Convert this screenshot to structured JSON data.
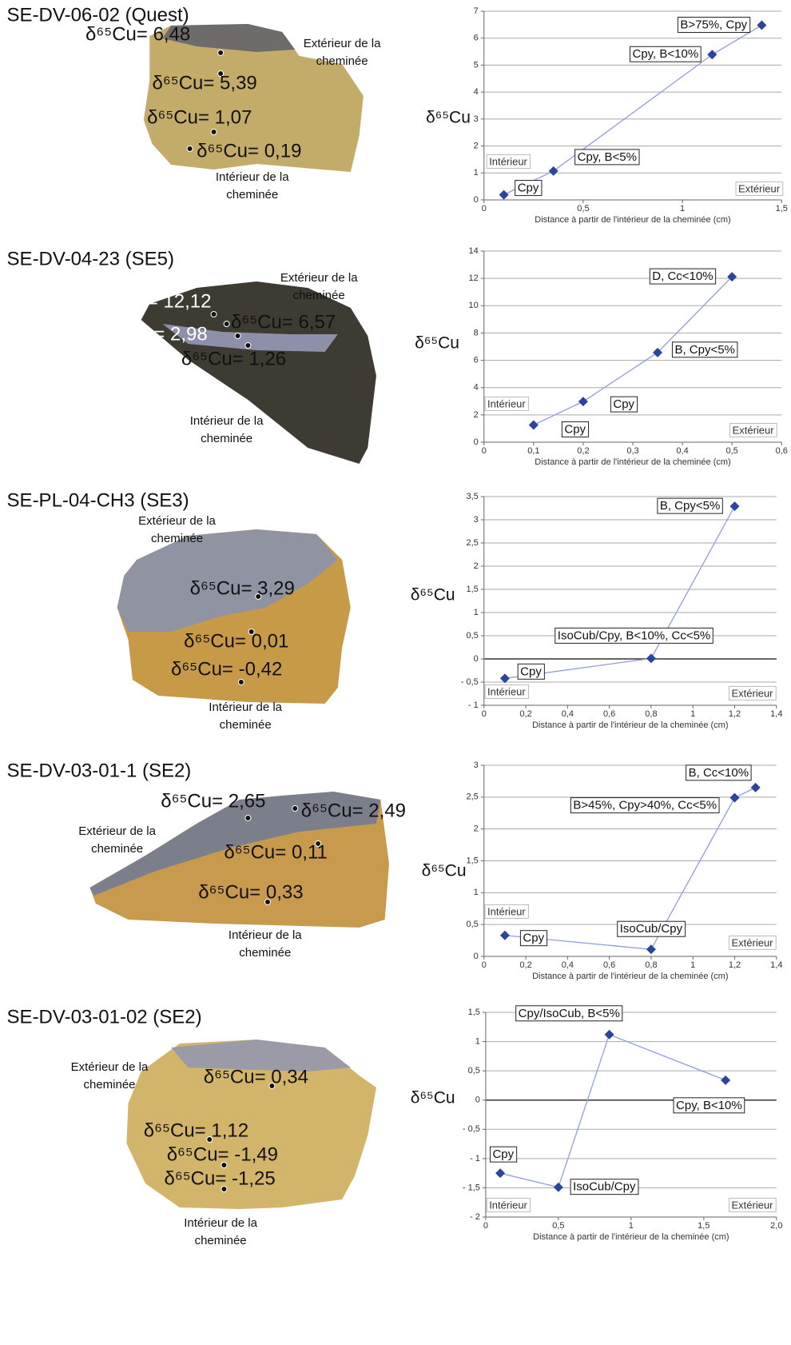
{
  "samples": [
    {
      "title": "SE-DV-06-02 (Quest)",
      "measurements": [
        "δ⁶⁵Cu= 6,48",
        "δ⁶⁵Cu= 5,39",
        "δ⁶⁵Cu= 1,07",
        "δ⁶⁵Cu= 0,19"
      ],
      "outer": [
        "Extérieur de la",
        "cheminée"
      ],
      "inner": [
        "Intérieur de la",
        "cheminée"
      ]
    },
    {
      "title": "SE-DV-04-23 (SE5)",
      "measurements": [
        "δ⁶⁵Cu= 12,12",
        "δ⁶⁵Cu= 6,57",
        "δ⁶⁵Cu= 2,98",
        "δ⁶⁵Cu= 1,26"
      ],
      "outer": [
        "Extérieur de la",
        "cheminée"
      ],
      "inner": [
        "Intérieur de la",
        "cheminée"
      ]
    },
    {
      "title": "SE-PL-04-CH3 (SE3)",
      "measurements": [
        "δ⁶⁵Cu= 3,29",
        "δ⁶⁵Cu= 0,01",
        "δ⁶⁵Cu= -0,42"
      ],
      "outer": [
        "Extérieur de la",
        "cheminée"
      ],
      "inner": [
        "Intérieur de la",
        "cheminée"
      ]
    },
    {
      "title": "SE-DV-03-01-1 (SE2)",
      "measurements": [
        "δ⁶⁵Cu= 2,65",
        "δ⁶⁵Cu= 2,49",
        "δ⁶⁵Cu= 0,11",
        "δ⁶⁵Cu= 0,33"
      ],
      "outer": [
        "Extérieur de la",
        "cheminée"
      ],
      "inner": [
        "Intérieur de la",
        "cheminée"
      ]
    },
    {
      "title": "SE-DV-03-01-02 (SE2)",
      "measurements": [
        "δ⁶⁵Cu= 0,34",
        "δ⁶⁵Cu= 1,12",
        "δ⁶⁵Cu= -1,49",
        "δ⁶⁵Cu= -1,25"
      ],
      "outer": [
        "Extérieur de la",
        "cheminée"
      ],
      "inner": [
        "Intérieur de la",
        "cheminée"
      ]
    }
  ],
  "chart_data": [
    {
      "type": "line",
      "ylabel": "δ⁶⁵Cu",
      "xlabel": "Distance à partir de l'intérieur de la cheminée (cm)",
      "inner_label": "Intérieur",
      "outer_label": "Extérieur",
      "color": "#2b459c",
      "line_color": "#8d9fd9",
      "grid": true,
      "x": [
        0.1,
        0.35,
        1.15,
        1.4
      ],
      "values": [
        0.19,
        1.07,
        5.39,
        6.48
      ],
      "point_labels": [
        "Cpy",
        "Cpy, B<5%",
        "Cpy, B<10%",
        "B>75%, Cpy"
      ],
      "xlim": [
        0,
        1.5
      ],
      "xticks": [
        0,
        {
          "value": 0.5,
          "label": "0,5"
        },
        1,
        {
          "value": 1.5,
          "label": "1,5"
        }
      ],
      "ylim": [
        0,
        7
      ],
      "yticks": [
        0,
        1,
        2,
        3,
        4,
        5,
        6,
        7
      ]
    },
    {
      "type": "line",
      "ylabel": "δ⁶⁵Cu",
      "xlabel": "Distance à partir de l'intérieur de la cheminée (cm)",
      "inner_label": "Intérieur",
      "outer_label": "Extérieur",
      "color": "#2b459c",
      "line_color": "#8d9fd9",
      "grid": true,
      "x": [
        0.1,
        0.2,
        0.35,
        0.5
      ],
      "values": [
        1.26,
        2.98,
        6.57,
        12.12
      ],
      "point_labels": [
        "Cpy",
        "Cpy",
        "B, Cpy<5%",
        "D, Cc<10%"
      ],
      "xlim": [
        0,
        0.6
      ],
      "xticks": [
        0,
        {
          "value": 0.1,
          "label": "0,1"
        },
        {
          "value": 0.2,
          "label": "0,2"
        },
        {
          "value": 0.3,
          "label": "0,3"
        },
        {
          "value": 0.4,
          "label": "0,4"
        },
        {
          "value": 0.5,
          "label": "0,5"
        },
        {
          "value": 0.6,
          "label": "0,6"
        }
      ],
      "ylim": [
        0,
        14
      ],
      "yticks": [
        0,
        2,
        4,
        6,
        8,
        10,
        12,
        14
      ]
    },
    {
      "type": "line",
      "ylabel": "δ⁶⁵Cu",
      "xlabel": "Distance à partir de l'intérieur de la cheminée (cm)",
      "inner_label": "Intérieur",
      "outer_label": "Extérieur",
      "color": "#2b459c",
      "line_color": "#8d9fd9",
      "grid": true,
      "x": [
        0.1,
        0.8,
        1.2
      ],
      "values": [
        -0.42,
        0.01,
        3.29
      ],
      "point_labels": [
        "Cpy",
        "IsoCub/Cpy, B<10%, Cc<5%",
        "B, Cpy<5%"
      ],
      "xlim": [
        0,
        1.4
      ],
      "xticks": [
        0,
        {
          "value": 0.2,
          "label": "0,2"
        },
        {
          "value": 0.4,
          "label": "0,4"
        },
        {
          "value": 0.6,
          "label": "0,6"
        },
        {
          "value": 0.8,
          "label": "0,8"
        },
        1,
        {
          "value": 1.2,
          "label": "1,2"
        },
        {
          "value": 1.4,
          "label": "1,4"
        }
      ],
      "ylim": [
        -1,
        3.5
      ],
      "yticks": [
        {
          "value": -1,
          "label": "- 1"
        },
        {
          "value": -0.5,
          "label": "- 0,5"
        },
        0,
        {
          "value": 0.5,
          "label": "0,5"
        },
        1,
        {
          "value": 1.5,
          "label": "1,5"
        },
        2,
        {
          "value": 2.5,
          "label": "2,5"
        },
        3,
        {
          "value": 3.5,
          "label": "3,5"
        }
      ]
    },
    {
      "type": "line",
      "ylabel": "δ⁶⁵Cu",
      "xlabel": "Distance à partir de l'intérieur de la cheminée (cm)",
      "inner_label": "Intérieur",
      "outer_label": "Extérieur",
      "color": "#2b459c",
      "line_color": "#8d9fd9",
      "grid": true,
      "x": [
        0.1,
        0.8,
        1.2,
        1.3
      ],
      "values": [
        0.33,
        0.11,
        2.49,
        2.65
      ],
      "point_labels": [
        "Cpy",
        "IsoCub/Cpy",
        "B>45%, Cpy>40%, Cc<5%",
        "B, Cc<10%"
      ],
      "xlim": [
        0,
        1.4
      ],
      "xticks": [
        0,
        {
          "value": 0.2,
          "label": "0,2"
        },
        {
          "value": 0.4,
          "label": "0,4"
        },
        {
          "value": 0.6,
          "label": "0,6"
        },
        {
          "value": 0.8,
          "label": "0,8"
        },
        1,
        {
          "value": 1.2,
          "label": "1,2"
        },
        {
          "value": 1.4,
          "label": "1,4"
        }
      ],
      "ylim": [
        0,
        3
      ],
      "yticks": [
        0,
        {
          "value": 0.5,
          "label": "0,5"
        },
        1,
        {
          "value": 1.5,
          "label": "1,5"
        },
        2,
        {
          "value": 2.5,
          "label": "2,5"
        },
        3
      ]
    },
    {
      "type": "line",
      "ylabel": "δ⁶⁵Cu",
      "xlabel": "Distance à partir de l'intérieur de la cheminée (cm)",
      "inner_label": "Intérieur",
      "outer_label": "Extérieur",
      "color": "#2b459c",
      "line_color": "#8d9fd9",
      "grid": true,
      "x": [
        0.1,
        0.5,
        0.85,
        1.65
      ],
      "values": [
        -1.25,
        -1.49,
        1.12,
        0.34
      ],
      "point_labels": [
        "Cpy",
        "IsoCub/Cpy",
        "Cpy/IsoCub, B<5%",
        "Cpy, B<10%"
      ],
      "xlim": [
        0,
        2
      ],
      "xticks": [
        0,
        {
          "value": 0.5,
          "label": "0,5"
        },
        1,
        {
          "value": 1.5,
          "label": "1,5"
        },
        {
          "value": 2,
          "label": "2,0"
        }
      ],
      "ylim": [
        -2,
        1.5
      ],
      "yticks": [
        {
          "value": -2,
          "label": "- 2"
        },
        {
          "value": -1.5,
          "label": "- 1,5"
        },
        {
          "value": -1,
          "label": "- 1"
        },
        {
          "value": -0.5,
          "label": "- 0,5"
        },
        0,
        {
          "value": 0.5,
          "label": "0,5"
        },
        1,
        {
          "value": 1.5,
          "label": "1,5"
        }
      ]
    }
  ]
}
